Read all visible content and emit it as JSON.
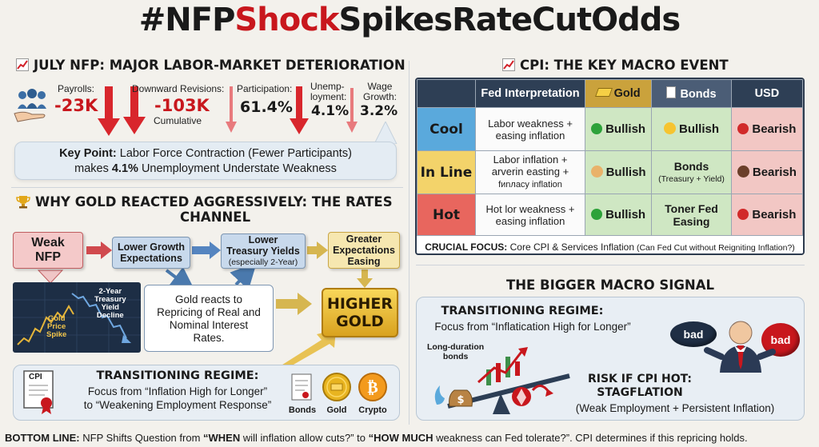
{
  "title": {
    "part1": "#NFP",
    "part2": "Shock",
    "part3": "SpikesRateCutOdds"
  },
  "left": {
    "section1_title": "JULY NFP: MAJOR LABOR-MARKET DETERIORATION",
    "stats": {
      "payrolls_label": "Payrolls:",
      "payrolls_value": "-23K",
      "revisions_label": "Downward Revisions:",
      "revisions_value": "-103K",
      "revisions_sub": "Cumulative",
      "participation_label": "Participation:",
      "participation_value": "61.4%",
      "unemployment_label_1": "Unemp-",
      "unemployment_label_2": "loyment:",
      "unemployment_value": "4.1%",
      "wage_label_1": "Wage",
      "wage_label_2": "Growth:",
      "wage_value": "3.2%"
    },
    "keypoint": {
      "bold": "Key Point:",
      "text1": " Labor Force Contraction (Fewer Participants)",
      "text2a": "makes ",
      "text2_bold": "4.1%",
      "text2b": " Unemployment Understate Weakness"
    },
    "section2_title_1": "WHY GOLD REACTED AGGRESSIVELY: THE RATES",
    "section2_title_2": "CHANNEL",
    "flow": {
      "weak_nfp_1": "Weak",
      "weak_nfp_2": "NFP",
      "lower_growth_1": "Lower Growth",
      "lower_growth_2": "Expectations",
      "lower_yields_1": "Lower",
      "lower_yields_2": "Treasury Yields",
      "lower_yields_3": "(especially 2-Year)",
      "greater_easing_1": "Greater",
      "greater_easing_2": "Expectations",
      "greater_easing_3": "Easing",
      "higher_gold_1": "HIGHER",
      "higher_gold_2": "GOLD",
      "gold_reacts_1": "Gold reacts to",
      "gold_reacts_2": "Repricing of Real and",
      "gold_reacts_3": "Nominal Interest",
      "gold_reacts_4": "Rates.",
      "chart_yield_1": "2-Year",
      "chart_yield_2": "Treasury",
      "chart_yield_3": "Yield",
      "chart_yield_4": "Decline",
      "chart_gold_1": "Gold",
      "chart_gold_2": "Price",
      "chart_gold_3": "Spike"
    },
    "regime": {
      "doc_label": "CPI",
      "title": "TRANSITIONING REGIME:",
      "line1": "Focus from “Inflation High for Longer”",
      "line2": "to “Weakening Employment Response”",
      "bonds": "Bonds",
      "gold": "Gold",
      "crypto": "Crypto"
    }
  },
  "right": {
    "section_title": "CPI: THE KEY MACRO EVENT",
    "table": {
      "headers": [
        "",
        "Fed Interpretation",
        "Gold",
        "Bonds",
        "USD"
      ],
      "rows": [
        {
          "label": "Cool",
          "interp_1": "Labor weakness +",
          "interp_2": "easing inflation",
          "interp_3": "",
          "gold": "Bullish",
          "bonds": "Bullish",
          "bonds_sub": "",
          "usd": "Bearish"
        },
        {
          "label": "In Line",
          "interp_1": "Labor inflation +",
          "interp_2": "arverin easting +",
          "interp_3": "fиnлacy inflation",
          "gold": "Bullish",
          "bonds": "Bonds",
          "bonds_sub": "(Treasury + Yield)",
          "usd": "Bearish"
        },
        {
          "label": "Hot",
          "interp_1": "Hot lor weakness +",
          "interp_2": "easing inflation",
          "interp_3": "",
          "gold": "Bullish",
          "bonds": "Toner Fed",
          "bonds_sub": "Easing",
          "usd": "Bearish"
        }
      ],
      "crucial_bold": "CRUCIAL FOCUS:",
      "crucial_text": " Core CPI & Services Inflation",
      "crucial_small": " (Can Fed Cut without Reigniting Inflation?)"
    },
    "bigger_title": "THE BIGGER MACRO SIGNAL",
    "bigger": {
      "regime_title": "TRANSITIONING REGIME:",
      "regime_line": "Focus from “Inflatication High for Longer”",
      "long_duration_1": "Long-duration",
      "long_duration_2": "bonds",
      "bad_left": "bad",
      "bad_right": "bad",
      "risk_1": "RISK IF CPI HOT:",
      "risk_2": "STAGFLATION",
      "risk_3": "(Weak Employment + Persistent Inflation)"
    }
  },
  "bottom": {
    "bold": "BOTTOM LINE:",
    "t1": " NFP Shifts Question from ",
    "q1": "“WHEN",
    "t2": " will inflation allow cuts?” to ",
    "q2": "“HOW MUCH",
    "t3": " weakness can Fed tolerate?”. CPI determines if this repricing holds."
  },
  "colors": {
    "red": "#c8171d",
    "cool_row": "#5aa9dc",
    "inline_row": "#f3d36a",
    "hot_row": "#e8665e",
    "bullish_bg": "#cfe7c3",
    "bearish_bg": "#f2c7c4",
    "header_bg": "#2e3f55",
    "gold": "#d9a21f"
  }
}
